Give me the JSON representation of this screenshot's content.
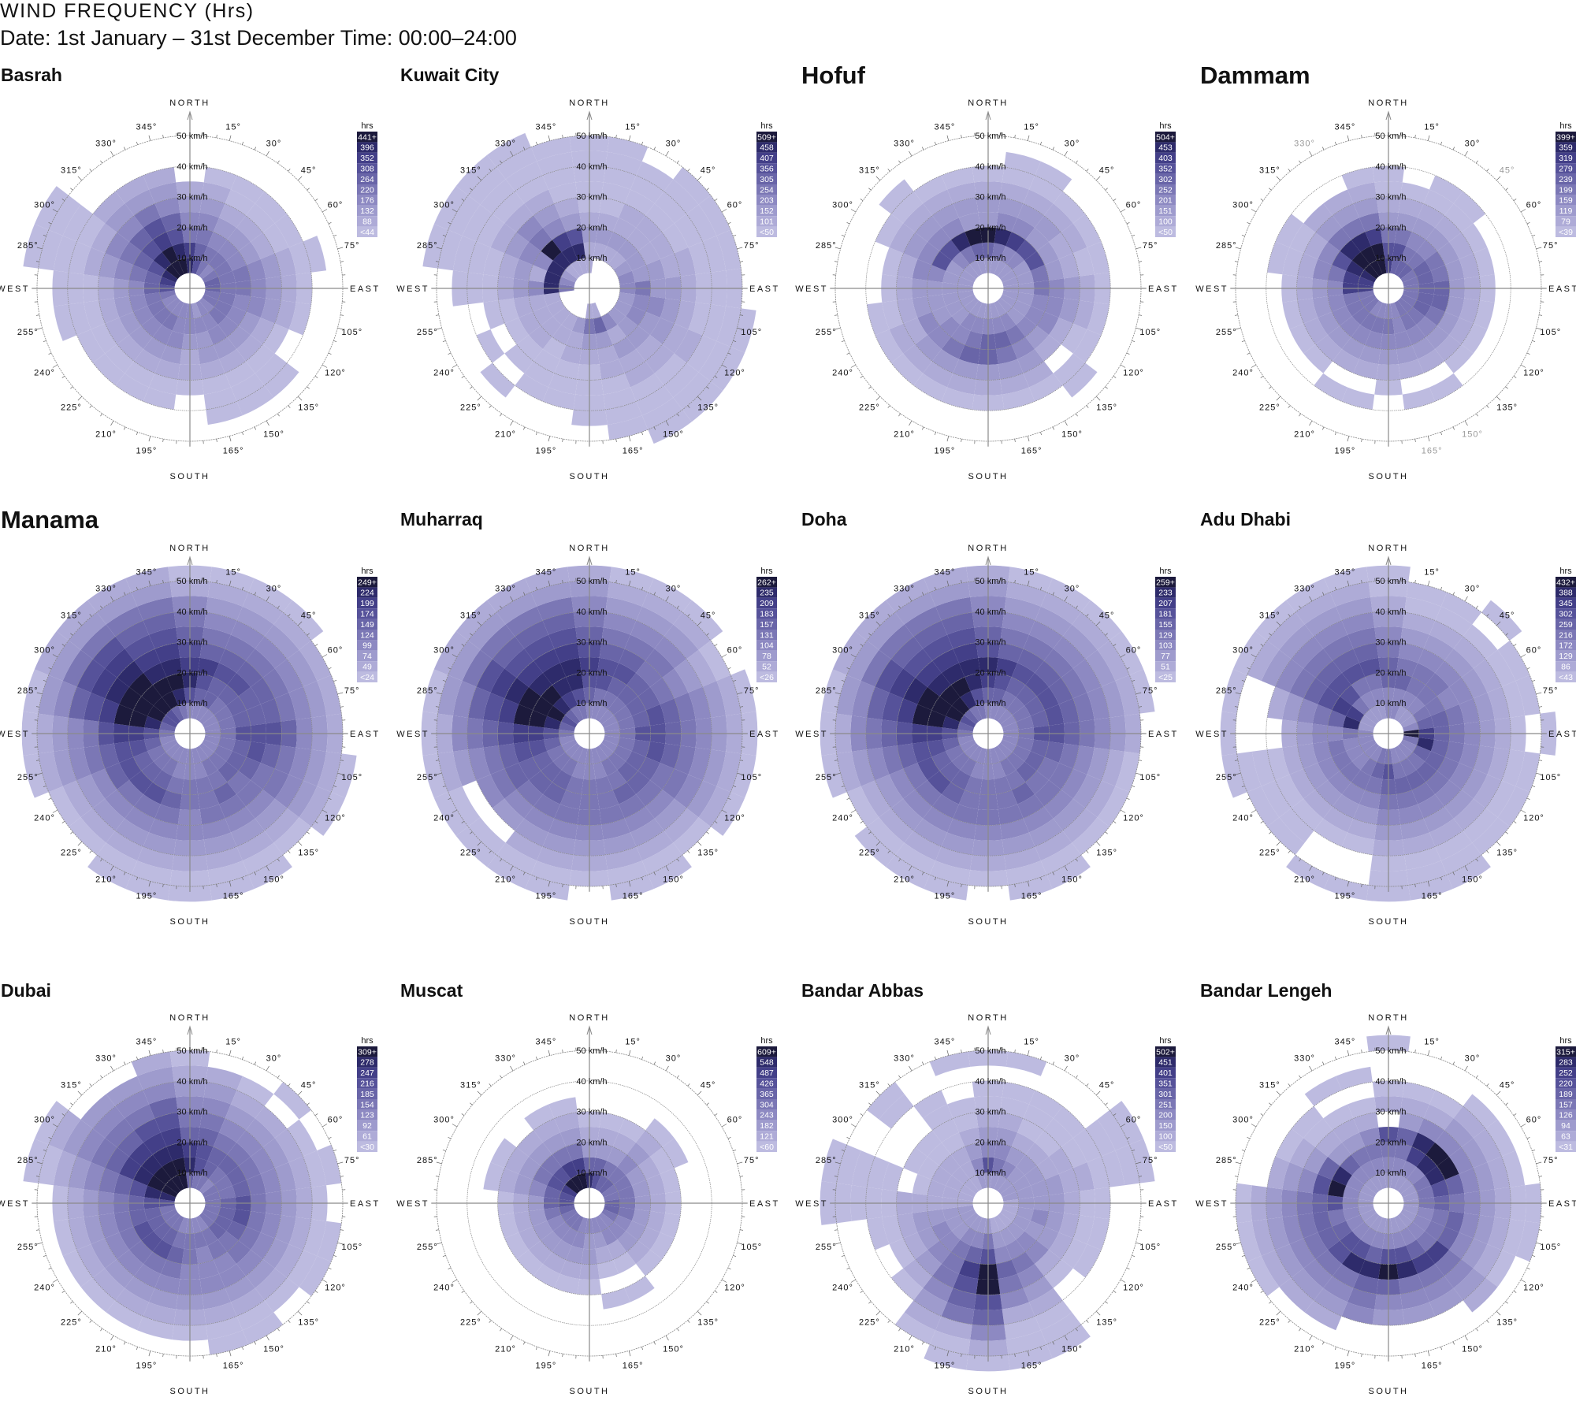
{
  "header": {
    "title": "WIND FREQUENCY (Hrs)",
    "subtitle": "Date: 1st January – 31st December Time: 00:00–24:00"
  },
  "palette": [
    "#bdbbe0",
    "#aeabd7",
    "#9e9bcd",
    "#8d89c2",
    "#7b77b5",
    "#6965a8",
    "#56529a",
    "#433f88",
    "#2e2b6b",
    "#1c1a3c"
  ],
  "axis": {
    "compass": {
      "north": "NORTH",
      "east": "EAST",
      "south": "SOUTH",
      "west": "WEST"
    },
    "degree_labels": [
      "15°",
      "30°",
      "45°",
      "60°",
      "75°",
      "105°",
      "120°",
      "135°",
      "150°",
      "165°",
      "195°",
      "210°",
      "225°",
      "240°",
      "255°",
      "285°",
      "300°",
      "315°",
      "330°",
      "345°"
    ],
    "speed_labels": [
      "10 km/h",
      "20 km/h",
      "30 km/h",
      "40 km/h",
      "50 km/h"
    ],
    "legend_title": "hrs"
  },
  "chart_data": {
    "type": "heatmap",
    "subtype": "polar wind rose (direction sectors × speed bins)",
    "direction_sectors_deg": [
      0,
      15,
      30,
      45,
      60,
      75,
      90,
      105,
      120,
      135,
      150,
      165,
      180,
      195,
      210,
      225,
      240,
      255,
      270,
      285,
      300,
      315,
      330,
      345
    ],
    "speed_bins_kmh": [
      "5-10",
      "10-15",
      "15-20",
      "20-25",
      "25-30",
      "30-35",
      "35-40",
      "40-45",
      "45-50",
      "50-55"
    ],
    "cell_encoding": "each sector string lists color-level per speed bin from inner outward: 0 = lightest legend class … 9 = darkest legend class, '.' = no hours",
    "radial_range_kmh": [
      0,
      50
    ]
  },
  "charts": [
    {
      "name": "Basrah",
      "big": false,
      "legend": [
        "441+",
        "396",
        "352",
        "308",
        "264",
        "220",
        "176",
        "132",
        "88",
        "<44"
      ],
      "sectors": [
        "874321",
        "6543210",
        "4432100",
        "3432100",
        "4432100",
        "54432100",
        "5443210",
        "4433210",
        "443210",
        "34321000",
        "33321000",
        "23221000",
        "332110",
        "3332100",
        "3432100",
        "3432100",
        "3432100",
        "44321000",
        "65321000",
        "7543210000",
        "8654310000",
        "9865321",
        "9976421",
        "9865321"
      ]
    },
    {
      "name": "Kuwait City",
      "big": false,
      "legend": [
        "509+",
        "458",
        "407",
        "356",
        "305",
        "254",
        "203",
        "152",
        "101",
        "<50"
      ],
      "sectors": [
        "112100000",
        ".12100000",
        ".1211000",
        ".12110000",
        ".22110000",
        ".32211000",
        ".34221000",
        ".233210000",
        ".232211000",
        ".222110000",
        ".312110000",
        "152110000",
        "14210000",
        ".211000",
        ".110000",
        ".11100.0",
        ".1110.0",
        ".11100",
        "48321000",
        "3812100000",
        "2833210000",
        "1894310000",
        "1873210000",
        "186210000"
      ]
    },
    {
      "name": "Hofuf",
      "big": true,
      "legend": [
        "504+",
        "453",
        "403",
        "352",
        "302",
        "252",
        "201",
        "151",
        "100",
        "<50"
      ],
      "sectors": [
        "2592210",
        "24832100",
        "23732100",
        "2362210",
        "2262110",
        "2242100",
        "2243210",
        "2233210",
        "2233100",
        "22321.00",
        "2343210",
        "2354210",
        "2355210",
        "2345210",
        "2334210",
        "2233210",
        "2223110",
        "2222100",
        "222210",
        "223310",
        "2263210",
        "23632100",
        "2483210",
        "2592210"
      ]
    },
    {
      "name": "Dammam",
      "big": true,
      "muted_degree_labels": [
        "330°",
        "45°",
        "150°",
        "165°"
      ],
      "legend": [
        "399+",
        "359",
        "319",
        "279",
        "239",
        "199",
        "159",
        "119",
        "79",
        "<39"
      ],
      "sectors": [
        "7642100",
        "564210",
        "5432100",
        "5432100",
        "454210",
        "454210",
        "455210",
        "455210",
        "454210",
        "443210",
        "44321.0",
        "33321.0",
        "343210",
        "34321.0",
        "34321.0",
        "443210",
        "443210",
        "443210",
        "773210",
        "7743100",
        "8863100",
        "998421",
        "998421",
        "9974210"
      ]
    },
    {
      "name": "Manama",
      "big": true,
      "legend": [
        "249+",
        "224",
        "199",
        "174",
        "149",
        "124",
        "99",
        "74",
        "49",
        "<24"
      ],
      "sectors": [
        "3687654310",
        "3567543210",
        "3556543210",
        "3456543210",
        "345554321",
        "345554321",
        "346665321",
        "3456543210",
        "3455443210",
        "345443210",
        "3445432100",
        "3344432100",
        "3344332100",
        "3345432100",
        "3456432100",
        "345643210",
        "345653210",
        "3566543210",
        "4677643210",
        "5899765320",
        "6999876421",
        "6999876421",
        "5998765421",
        "4898765421"
      ]
    },
    {
      "name": "Muharraq",
      "big": false,
      "legend": [
        "262+",
        "235",
        "209",
        "183",
        "157",
        "131",
        "104",
        "78",
        "52",
        "<26"
      ],
      "sectors": [
        "3567654321",
        "3466543210",
        "3456543210",
        "3455443210",
        "345543210",
        "3456543210",
        "3466543210",
        "3456543210",
        "3455443210",
        "345543210",
        "3445432100",
        "3344432100",
        "334443210",
        "3344432100",
        "3455432100",
        "3455432.00",
        "3455543.00",
        "3566543210",
        "4677654310",
        "5899765320",
        "6999876421",
        "5898765421",
        "4788765421",
        "4688765421"
      ]
    },
    {
      "name": "Doha",
      "big": false,
      "legend": [
        "259+",
        "233",
        "207",
        "181",
        "155",
        "129",
        "103",
        "77",
        "51",
        "<25"
      ],
      "sectors": [
        "3578654321",
        "3567543210",
        "3456543210",
        "3456543210",
        "3456543210",
        "3456543210",
        "346654321",
        "345543210",
        "345443210",
        "345443210",
        "3445432100",
        "3344432100",
        "334443210",
        "3344432100",
        "3455432100",
        "3456432100",
        "345643210",
        "3566543210",
        "4677654310",
        "5899765320",
        "6999876421",
        "5998765421",
        "4898765421",
        "4688765421"
      ]
    },
    {
      "name": "Adu Dhabi",
      "big": false,
      "legend": [
        "432+",
        "388",
        "345",
        "302",
        "259",
        "216",
        "172",
        "129",
        "86",
        "<43"
      ],
      "sectors": [
        "3355432100",
        "335432100",
        "234432100",
        "23443210.0",
        "244332100",
        "355432100",
        "97543210.0",
        "485432100",
        "355432100",
        "345432100",
        "3454321000",
        "3454321000",
        "4654321000",
        "4543210..0",
        "3443210..0",
        "334321000",
        "334321000",
        "3343210000",
        "343321...0",
        "2854321..0",
        "2776543210",
        "2466543210",
        "2346543210",
        "2346543210"
      ]
    },
    {
      "name": "Dubai",
      "big": false,
      "legend": [
        "309+",
        "278",
        "247",
        "216",
        "185",
        "154",
        "123",
        "92",
        "61",
        "<30"
      ],
      "sectors": [
        "587543210",
        "46654321",
        "45543210",
        "3454321.0",
        "44543210",
        "445432100",
        "45643210",
        "456432100",
        "455432100",
        "45443210",
        "344332100",
        "343332100",
        "34433210",
        "34543210",
        "45643210",
        "45643210",
        "45643210",
        "45543210",
        "66543210",
        "8865432100",
        "9987543210",
        "99875432",
        "99876432",
        "998765321"
      ]
    },
    {
      "name": "Muscat",
      "big": false,
      "legend": [
        "609+",
        "548",
        "487",
        "426",
        "365",
        "304",
        "243",
        "182",
        "121",
        "<60"
      ],
      "sectors": [
        "85210",
        "65210",
        "54210",
        "543210",
        "442100",
        "44210",
        "54210",
        "54210",
        "43210",
        "33210",
        "3310.0",
        "3210.0",
        "32210",
        "33210",
        "43210",
        "43210",
        "43210",
        "54210",
        "65210",
        "653210",
        "764210",
        "96421",
        "974210",
        "974210"
      ]
    },
    {
      "name": "Bandar Abbas",
      "big": false,
      "legend": [
        "502+",
        "451",
        "401",
        "351",
        "301",
        "251",
        "200",
        "150",
        "100",
        "<50"
      ],
      "sectors": [
        "2632100.0",
        "2432100.0",
        "2321000",
        "2221000",
        "2221100000",
        "2222110000",
        "1222100",
        "1232100",
        "1222100",
        "123310",
        "1234321000",
        "1235431000",
        "2469965310",
        "2357654100",
        "234443210",
        "2233210",
        "223210",
        "2222100",
        "1111100000",
        "1110.00000",
        "11100",
        "11100..00",
        "1110000",
        "232100..0"
      ]
    },
    {
      "name": "Bandar Lengeh",
      "big": false,
      "legend": [
        "315+",
        "283",
        "252",
        "220",
        "189",
        "157",
        "126",
        "94",
        "63",
        "<31"
      ],
      "sectors": [
        "2346.10..0",
        "2345210",
        "2378310",
        "23893210",
        "24893210",
        "24653210",
        "245432100",
        "234532100",
        "23453210",
        "23474321",
        "2357432",
        "2368432",
        "2369532",
        "2358543",
        "23684321",
        "23664321",
        "235543210",
        "234543210",
        "236543210",
        "2396321",
        "2385210",
        "2352100",
        "234210.0",
        "234310.0"
      ]
    }
  ]
}
